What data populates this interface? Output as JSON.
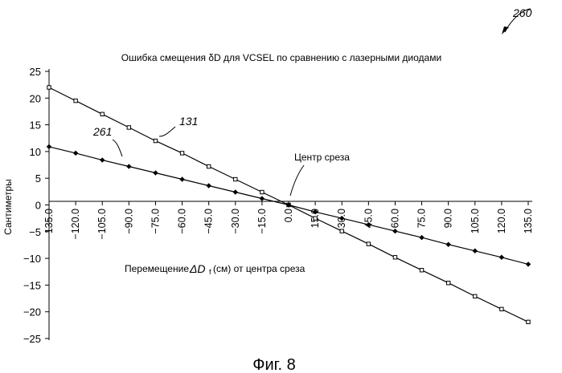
{
  "figure": {
    "ref_number": "260",
    "caption": "Фиг. 8"
  },
  "chart_data": {
    "type": "line",
    "title": "Ошибка смещения δD для VCSEL по сравнению с лазерными диодами",
    "ylabel": "Сантиметры",
    "xlabel_prefix": "Перемещение",
    "xlabel_symbol": "ΔD",
    "xlabel_sub": "f",
    "xlabel_suffix": "(см) от центра среза",
    "annotation": "Центр среза",
    "ylim": [
      -25,
      25
    ],
    "xlim": [
      -135,
      135
    ],
    "y_ticks": [
      "25",
      "20",
      "15",
      "10",
      "5",
      "0",
      "−5",
      "−10",
      "−15",
      "−20",
      "−25"
    ],
    "x_tick_labels": [
      "−135.0",
      "−120.0",
      "−105.0",
      "−90.0",
      "−75.0",
      "−60.0",
      "−45.0",
      "−30.0",
      "−15.0",
      "0.0",
      "15.0",
      "30.0",
      "45.0",
      "60.0",
      "75.0",
      "90.0",
      "105.0",
      "120.0",
      "135.0"
    ],
    "x": [
      -135,
      -120,
      -105,
      -90,
      -75,
      -60,
      -45,
      -30,
      -15,
      0,
      15,
      30,
      45,
      60,
      75,
      90,
      105,
      120,
      135
    ],
    "grid": false,
    "series": [
      {
        "name": "131",
        "marker": "square",
        "values": [
          22.0,
          19.5,
          17.0,
          14.5,
          12.0,
          9.7,
          7.2,
          4.8,
          2.4,
          0.0,
          -2.5,
          -4.9,
          -7.3,
          -9.8,
          -12.2,
          -14.6,
          -17.1,
          -19.5,
          -21.9
        ]
      },
      {
        "name": "261",
        "marker": "diamond",
        "values": [
          10.9,
          9.7,
          8.4,
          7.2,
          6.0,
          4.8,
          3.6,
          2.4,
          1.2,
          0.0,
          -1.3,
          -2.5,
          -3.7,
          -4.9,
          -6.1,
          -7.4,
          -8.6,
          -9.8,
          -11.1
        ]
      }
    ]
  }
}
